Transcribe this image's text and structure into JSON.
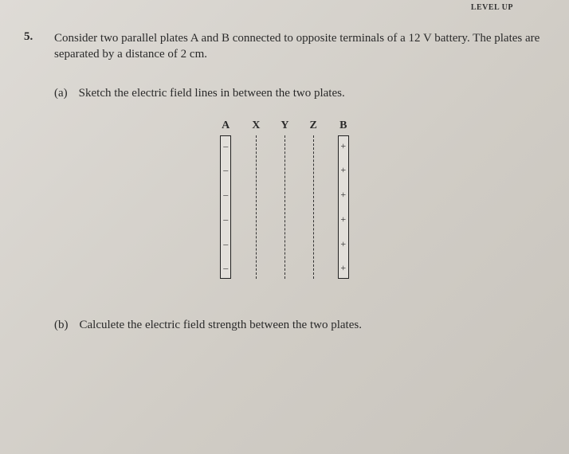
{
  "header": {
    "level_text": "LEVEL UP"
  },
  "question": {
    "number": "5.",
    "prompt": "Consider two parallel plates A and B connected to opposite terminals of a 12 V battery. The plates are separated by a distance of 2 cm."
  },
  "part_a": {
    "label": "(a)",
    "text": "Sketch the electric field lines in between the two plates."
  },
  "diagram": {
    "labels": {
      "A": "A",
      "X": "X",
      "Y": "Y",
      "Z": "Z",
      "B": "B"
    },
    "plate_A_marks": [
      "–",
      "–",
      "–",
      "–",
      "–",
      "–"
    ],
    "plate_B_marks": [
      "+",
      "+",
      "+",
      "+",
      "+",
      "+"
    ]
  },
  "part_b": {
    "label": "(b)",
    "text": "Calculete the electric field strength between the two plates."
  }
}
